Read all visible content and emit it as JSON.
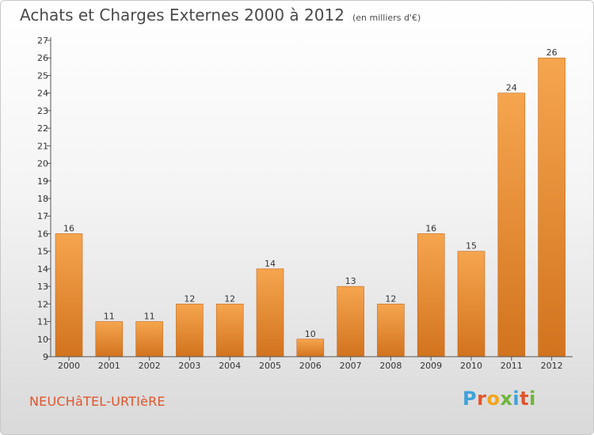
{
  "header": {
    "title": "Achats et Charges Externes 2000 à 2012",
    "unit": "(en milliers d'€)"
  },
  "footer": {
    "location": "NEUCHâTEL-URTIèRE",
    "brand": "Proxiti",
    "brand_colors": [
      "#3fa2d8",
      "#e0552d",
      "#f2a51a",
      "#6fb53b",
      "#3fa2d8",
      "#e0552d",
      "#6fb53b"
    ]
  },
  "chart_data": {
    "type": "bar",
    "categories": [
      "2000",
      "2001",
      "2002",
      "2003",
      "2004",
      "2005",
      "2006",
      "2007",
      "2008",
      "2009",
      "2010",
      "2011",
      "2012"
    ],
    "values": [
      16,
      11,
      11,
      12,
      12,
      14,
      10,
      13,
      12,
      16,
      15,
      24,
      26
    ],
    "ylim": [
      9,
      27
    ],
    "yticks": [
      9,
      10,
      11,
      12,
      13,
      14,
      15,
      16,
      17,
      18,
      19,
      20,
      21,
      22,
      23,
      24,
      25,
      26,
      27
    ],
    "grid": false,
    "bar_color_top": "#f6a54f",
    "bar_color_bottom": "#d2731e"
  }
}
